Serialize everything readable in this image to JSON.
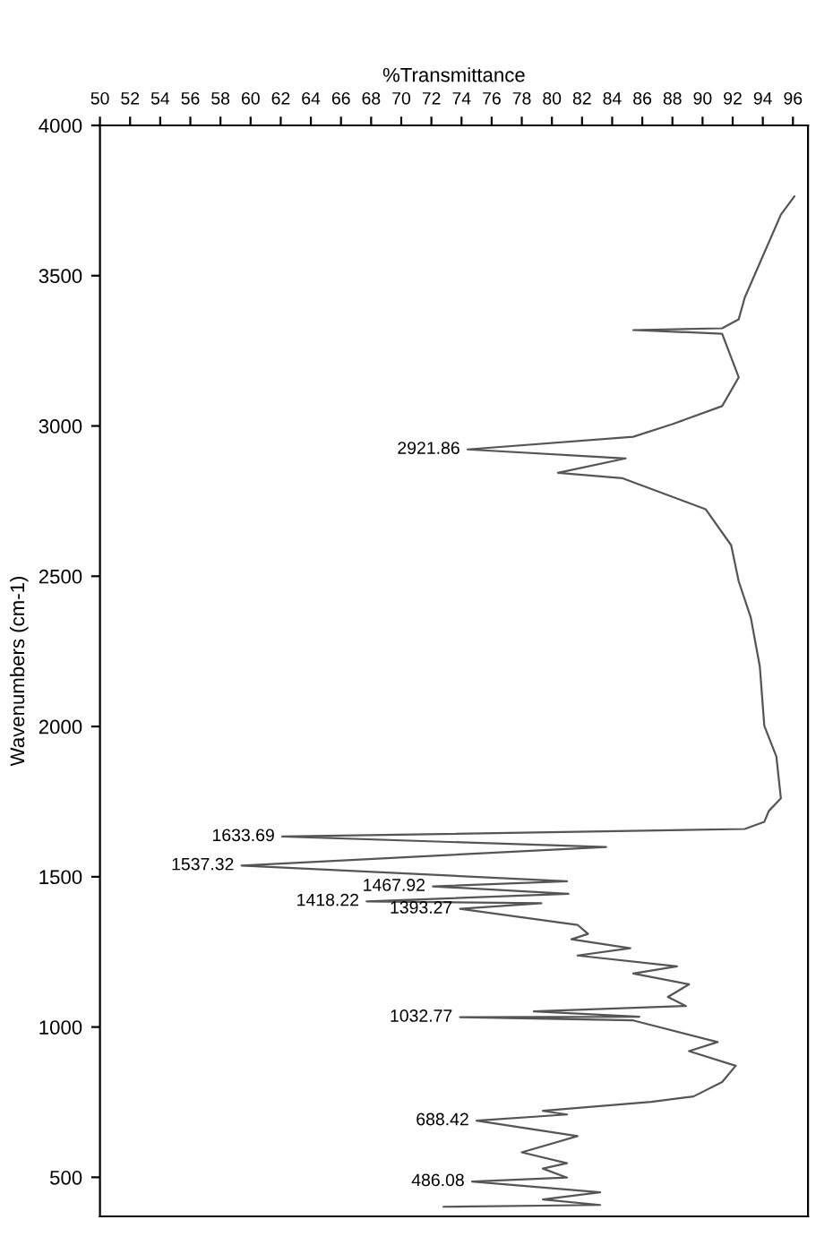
{
  "chart_data": {
    "type": "line",
    "orientation": "horizontal",
    "xlabel": "%Transmittance",
    "ylabel": "Wavenumbers (cm-1)",
    "x": [
      3764,
      3703,
      3427,
      3355,
      3325,
      3319,
      3307,
      3162,
      3066,
      3006,
      2964,
      2921.86,
      2892,
      2844,
      2826,
      2723,
      2603,
      2483,
      2363,
      2200,
      2002,
      1900,
      1761,
      1719,
      1683,
      1659,
      1633.69,
      1599,
      1537.32,
      1485,
      1467.92,
      1443,
      1418.22,
      1412,
      1393.27,
      1340,
      1310,
      1292,
      1262,
      1238,
      1202,
      1178,
      1142,
      1100,
      1070,
      1052,
      1034,
      1032.77,
      1022,
      950,
      920,
      871,
      817,
      769,
      751,
      721,
      709,
      688.42,
      637,
      583,
      547,
      529,
      499,
      486.08,
      450,
      426,
      408,
      402
    ],
    "series": [
      {
        "color": "#555555",
        "values": [
          96.1,
          95.2,
          92.8,
          92.4,
          91.3,
          85.4,
          91.3,
          92.4,
          91.3,
          88.0,
          85.4,
          74.4,
          84.9,
          80.4,
          84.7,
          90.2,
          91.9,
          92.4,
          93.2,
          93.8,
          94.1,
          94.9,
          95.2,
          94.4,
          94.1,
          92.8,
          62.1,
          83.6,
          59.4,
          81.0,
          72.1,
          81.1,
          67.7,
          79.3,
          73.9,
          81.7,
          82.4,
          81.3,
          85.2,
          81.7,
          88.3,
          85.4,
          89.1,
          87.7,
          88.9,
          78.8,
          85.8,
          73.9,
          85.4,
          91.0,
          89.1,
          92.2,
          91.3,
          89.4,
          86.6,
          79.4,
          81.0,
          75.0,
          81.7,
          78.0,
          81.0,
          79.4,
          81.0,
          74.7,
          83.2,
          79.4,
          83.2,
          72.8
        ]
      }
    ],
    "xlim": [
      50,
      97
    ],
    "xticks": [
      50,
      52,
      54,
      56,
      58,
      60,
      62,
      64,
      66,
      68,
      70,
      72,
      74,
      76,
      78,
      80,
      82,
      84,
      86,
      88,
      90,
      92,
      94,
      96
    ],
    "ylim": [
      370,
      4000
    ],
    "yticks": [
      500,
      1000,
      1500,
      2000,
      2500,
      3000,
      3500,
      4000
    ],
    "grid": false,
    "marker": "none",
    "line_style": "solid",
    "annotations": [
      {
        "text": "2921.86",
        "x": 74.4,
        "y": 2921.86
      },
      {
        "text": "1633.69",
        "x": 62.1,
        "y": 1633.69
      },
      {
        "text": "1537.32",
        "x": 59.4,
        "y": 1537.32
      },
      {
        "text": "1467.92",
        "x": 72.1,
        "y": 1467.92
      },
      {
        "text": "1418.22",
        "x": 67.7,
        "y": 1418.22
      },
      {
        "text": "1393.27",
        "x": 73.9,
        "y": 1393.27
      },
      {
        "text": "1032.77",
        "x": 73.9,
        "y": 1032.77
      },
      {
        "text": "688.42",
        "x": 75.0,
        "y": 688.42
      },
      {
        "text": "486.08",
        "x": 74.7,
        "y": 486.08
      }
    ]
  }
}
